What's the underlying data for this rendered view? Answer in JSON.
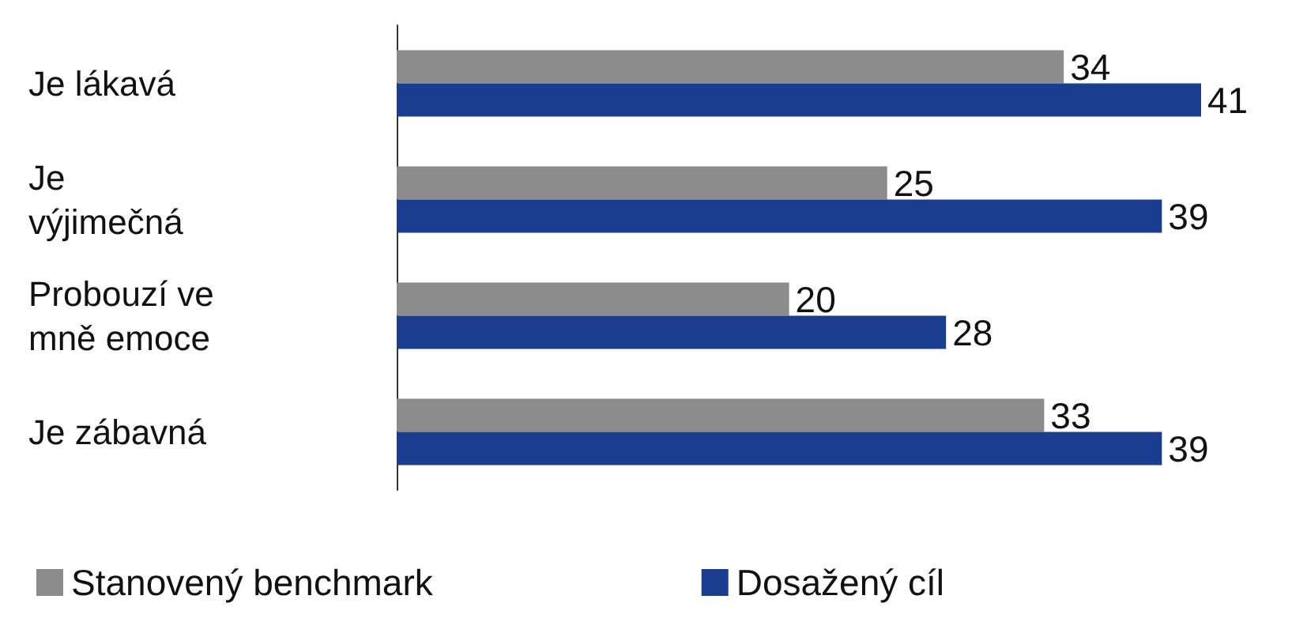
{
  "chart_data": {
    "type": "bar",
    "orientation": "horizontal",
    "categories": [
      "Je lákavá",
      "Je výjimečná",
      "Probouzí ve mně emoce",
      "Je zábavná"
    ],
    "series": [
      {
        "name": "Stanovený benchmark",
        "color": "#8c8c8c",
        "values": [
          34,
          25,
          20,
          33
        ]
      },
      {
        "name": "Dosažený cíl",
        "color": "#1a3d8f",
        "values": [
          41,
          39,
          28,
          39
        ]
      }
    ],
    "data_labels": true,
    "legend": "bottom"
  }
}
